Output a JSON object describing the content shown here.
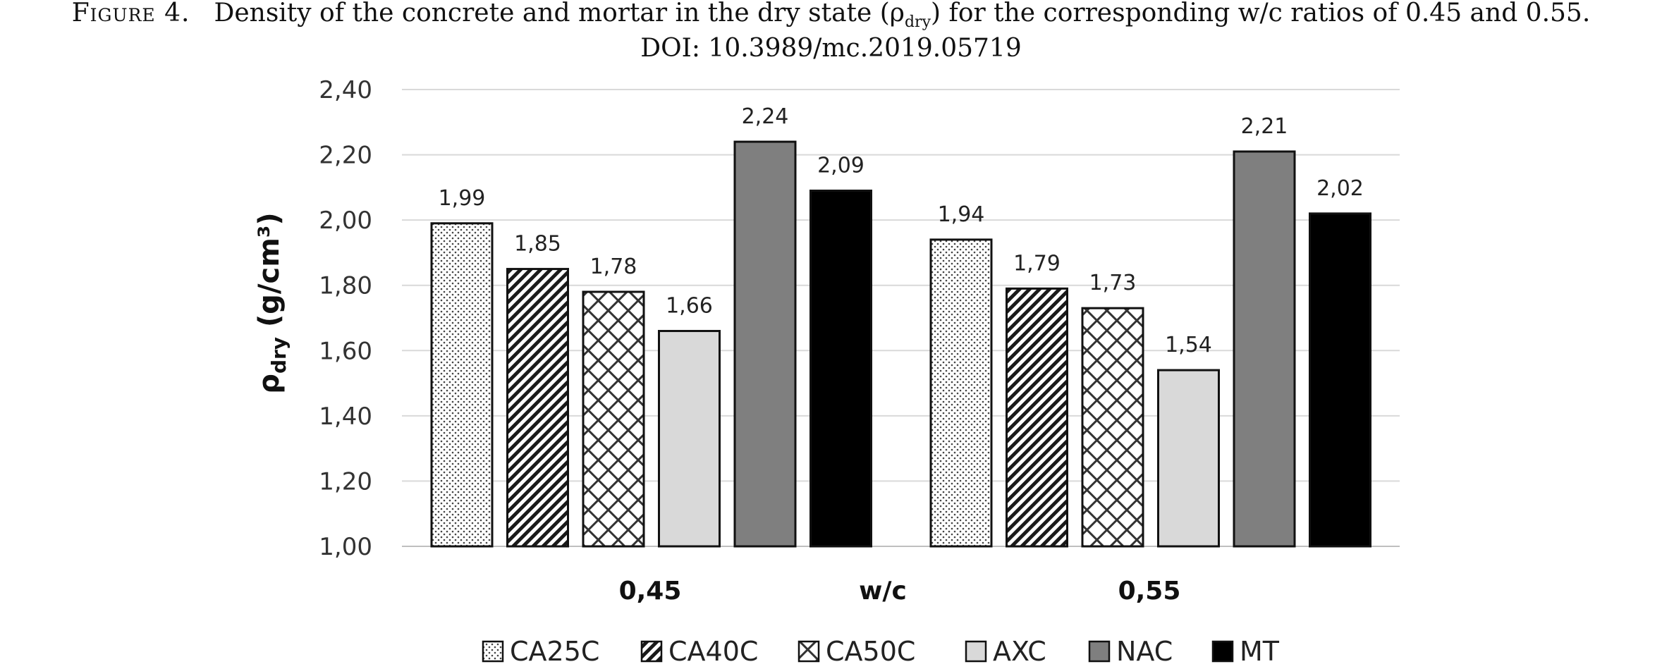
{
  "caption": {
    "figure_label": "Figure 4.",
    "text_before_sub": "Density of the concrete and mortar in the dry state (ρ",
    "sub": "dry",
    "text_after_sub": ") for the corresponding w/c ratios of 0.45 and 0.55.",
    "doi": "DOI: 10.3989/mc.2019.05719"
  },
  "chart_data": {
    "type": "bar",
    "categories": [
      "0,45",
      "0,55"
    ],
    "xlabel": "w/c",
    "ylabel_main": "ρ",
    "ylabel_sub": "dry",
    "ylabel_rest": " (g/cm³)",
    "ylim": [
      1.0,
      2.4
    ],
    "yticks": [
      "1,00",
      "1,20",
      "1,40",
      "1,60",
      "1,80",
      "2,00",
      "2,20",
      "2,40"
    ],
    "grid": true,
    "legend_position": "bottom",
    "series": [
      {
        "name": "CA25C",
        "values": [
          1.99,
          1.94
        ],
        "labels": [
          "1,99",
          "1,94"
        ],
        "fill": "dots"
      },
      {
        "name": "CA40C",
        "values": [
          1.85,
          1.79
        ],
        "labels": [
          "1,85",
          "1,79"
        ],
        "fill": "diagonal"
      },
      {
        "name": "CA50C",
        "values": [
          1.78,
          1.73
        ],
        "labels": [
          "1,78",
          "1,73"
        ],
        "fill": "crosshatch"
      },
      {
        "name": "AXC",
        "values": [
          1.66,
          1.54
        ],
        "labels": [
          "1,66",
          "1,54"
        ],
        "fill": "#d9d9d9"
      },
      {
        "name": "NAC",
        "values": [
          2.24,
          2.21
        ],
        "labels": [
          "2,24",
          "2,21"
        ],
        "fill": "#7f7f7f"
      },
      {
        "name": "MT",
        "values": [
          2.09,
          2.02
        ],
        "labels": [
          "2,09",
          "2,02"
        ],
        "fill": "#000000"
      }
    ]
  }
}
